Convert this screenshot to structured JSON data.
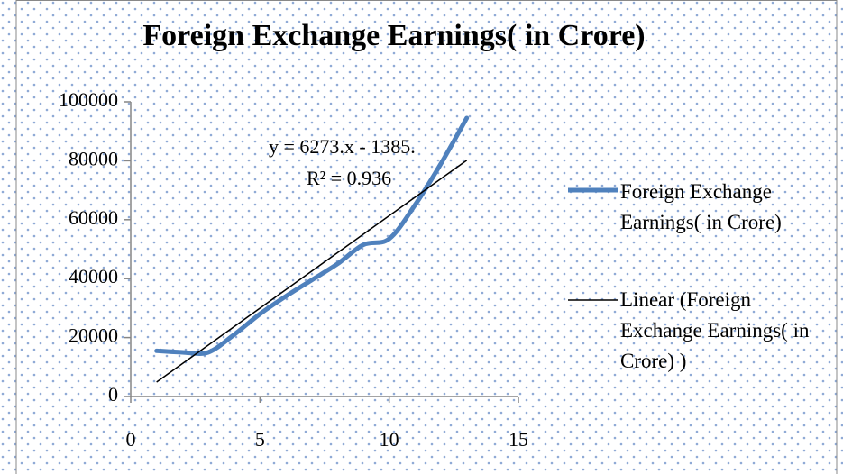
{
  "chart_data": {
    "type": "line",
    "title": "Foreign Exchange Earnings( in Crore)",
    "x": [
      1,
      2,
      3,
      4,
      5,
      6,
      7,
      8,
      9,
      10,
      11,
      12,
      13
    ],
    "series": [
      {
        "name": "Foreign Exchange Earnings( in Crore)",
        "color": "#4f81bd",
        "values": [
          15500,
          15000,
          15000,
          21000,
          28000,
          34000,
          39500,
          45000,
          51500,
          53500,
          65000,
          79000,
          94500
        ]
      }
    ],
    "trendline": {
      "name": "Linear (Foreign Exchange Earnings( in Crore) )",
      "color": "#000000",
      "slope": 6273,
      "intercept": -1385,
      "equation": "y = 6273.x - 1385.",
      "r2_label": "R² = 0.936"
    },
    "xlim": [
      0,
      15
    ],
    "xticks": [
      0,
      5,
      10,
      15
    ],
    "ylim": [
      0,
      100000
    ],
    "yticks": [
      0,
      20000,
      40000,
      60000,
      80000,
      100000
    ],
    "grid": false,
    "legend": "right"
  }
}
